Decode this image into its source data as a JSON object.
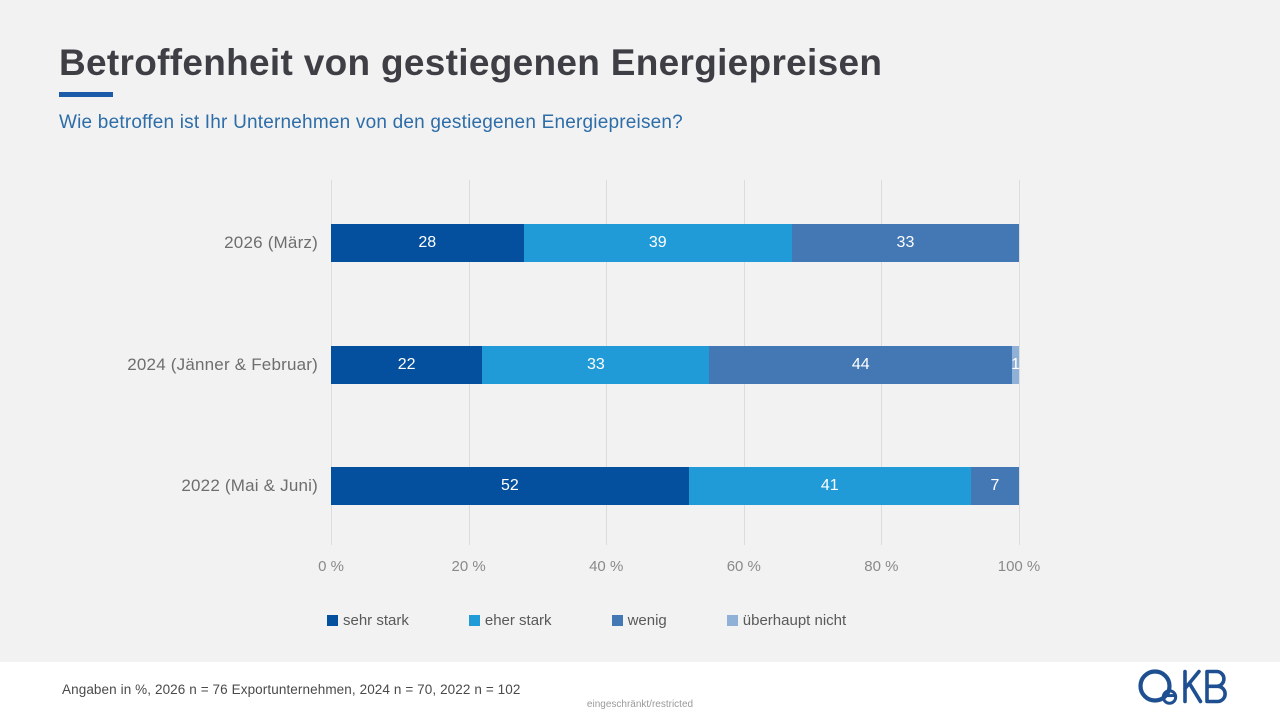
{
  "header": {
    "title": "Betroffenheit von gestiegenen Energiepreisen",
    "subtitle": "Wie betroffen ist Ihr Unternehmen von den gestiegenen Energiepreisen?"
  },
  "chart_data": {
    "type": "bar",
    "orientation": "horizontal",
    "stacked": true,
    "unit": "%",
    "categories": [
      "2026 (März)",
      "2024 (Jänner & Februar)",
      "2022 (Mai & Juni)"
    ],
    "series": [
      {
        "key": "sehr-stark",
        "name": "sehr stark",
        "color": "#05509e",
        "values": [
          28,
          22,
          52
        ]
      },
      {
        "key": "eher-stark",
        "name": "eher stark",
        "color": "#219bd8",
        "values": [
          39,
          33,
          41
        ]
      },
      {
        "key": "wenig",
        "name": "wenig",
        "color": "#4478b5",
        "values": [
          33,
          44,
          7
        ]
      },
      {
        "key": "ueberhaupt-nicht",
        "name": "überhaupt nicht",
        "color": "#8fb0d7",
        "values": [
          0,
          1,
          0
        ]
      }
    ],
    "x_ticks": [
      "0 %",
      "20 %",
      "40 %",
      "60 %",
      "80 %",
      "100 %"
    ],
    "xlim": [
      0,
      100
    ],
    "grid": "vertical-gridlines",
    "legend_position": "bottom",
    "value_labels": "inside-white"
  },
  "footer": {
    "note": "Angaben in %, 2026 n = 76 Exportunternehmen, 2024 n = 70, 2022 n = 102",
    "classification": "eingeschränkt/restricted",
    "logo_text": "OeKB"
  },
  "colors": {
    "page_background": "#f2f2f2",
    "footer_background": "#ffffff",
    "title": "#3e3e45",
    "subtitle": "#2d6da8",
    "accent_underline": "#1a5caa",
    "gridline": "#dcdcdc",
    "category_label": "#6e6e6e",
    "tick_label": "#8a8a8a",
    "legend_label": "#595959",
    "bar_value_label": "#ffffff",
    "logo_blue": "#1d4f91"
  }
}
